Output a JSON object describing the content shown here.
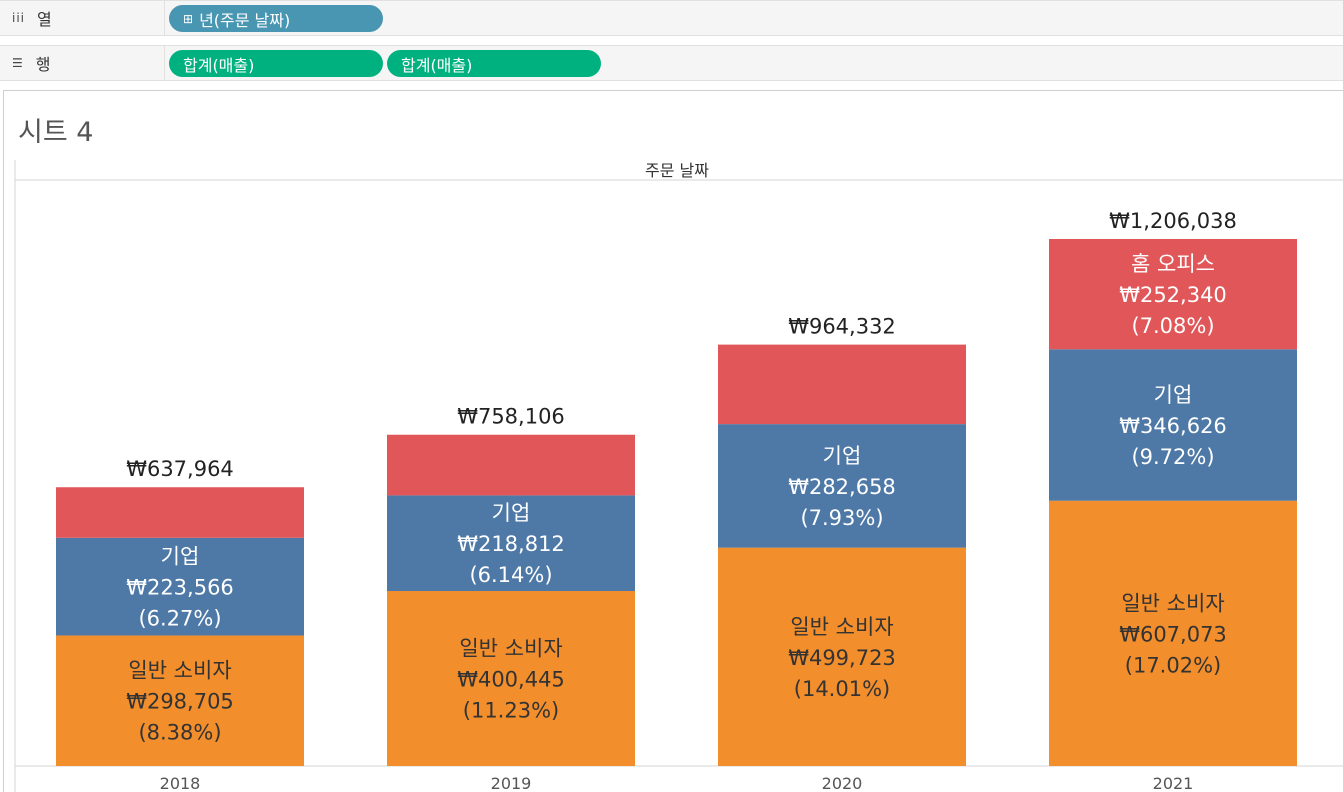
{
  "shelves": {
    "columns": {
      "label": "열",
      "icon": "columns-icon",
      "pills": [
        {
          "label": "년(주문 날짜)",
          "color": "#4996b2",
          "plus": "⊞"
        }
      ]
    },
    "rows": {
      "label": "행",
      "icon": "rows-icon",
      "pills": [
        {
          "label": "합계(매출)",
          "color": "#00b180"
        },
        {
          "label": "합계(매출)",
          "color": "#00b180"
        }
      ]
    }
  },
  "sheet": {
    "title": "시트 4"
  },
  "chart_data": {
    "type": "bar",
    "stacked": true,
    "header_label": "주문 날짜",
    "categories": [
      "2018",
      "2019",
      "2020",
      "2021"
    ],
    "ylim": [
      0,
      1206038
    ],
    "grid": false,
    "totals": [
      "₩637,964",
      "₩758,106",
      "₩964,332",
      "₩1,206,038"
    ],
    "total_values": [
      637964,
      758106,
      964332,
      1206038
    ],
    "series": [
      {
        "name": "일반 소비자",
        "color": "#f28e2b",
        "values": [
          298705,
          400445,
          499723,
          607073
        ],
        "value_labels": [
          "₩298,705",
          "₩400,445",
          "₩499,723",
          "₩607,073"
        ],
        "pct_labels": [
          "(8.38%)",
          "(11.23%)",
          "(14.01%)",
          "(17.02%)"
        ],
        "show_label": [
          true,
          true,
          true,
          true
        ]
      },
      {
        "name": "기업",
        "color": "#4e79a7",
        "values": [
          223566,
          218812,
          282658,
          346626
        ],
        "value_labels": [
          "₩223,566",
          "₩218,812",
          "₩282,658",
          "₩346,626"
        ],
        "pct_labels": [
          "(6.27%)",
          "(6.14%)",
          "(7.93%)",
          "(9.72%)"
        ],
        "show_label": [
          true,
          true,
          true,
          true
        ]
      },
      {
        "name": "홈 오피스",
        "color": "#e15759",
        "values": [
          115693,
          138849,
          181951,
          252340
        ],
        "value_labels": [
          "",
          "",
          "",
          "₩252,340"
        ],
        "pct_labels": [
          "",
          "",
          "",
          "(7.08%)"
        ],
        "show_label": [
          false,
          false,
          false,
          true
        ]
      }
    ]
  }
}
